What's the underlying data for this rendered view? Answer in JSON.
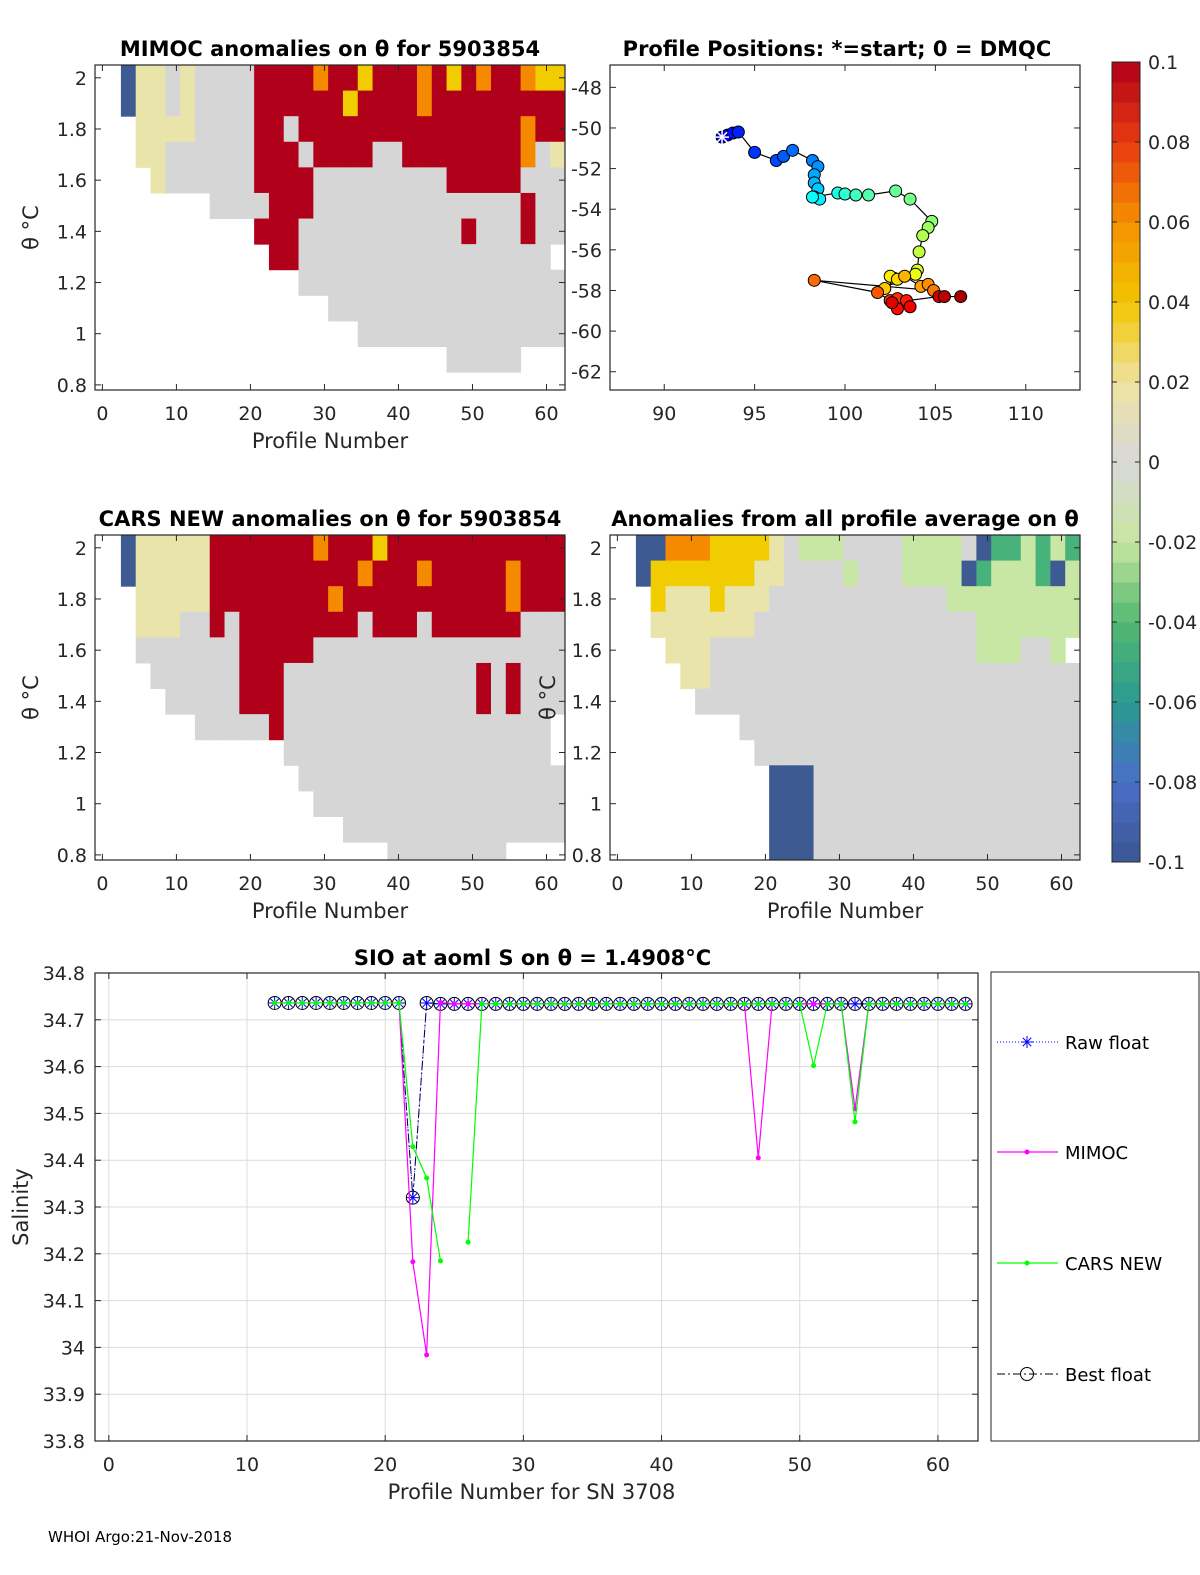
{
  "figure": {
    "footer": "WHOI Argo:21-Nov-2018"
  },
  "heat_palette": {
    "g": "#d6d6d6",
    "y": "#e8e4aa",
    "Y": "#f0cc00",
    "o": "#f58a00",
    "r": "#b0001a",
    "b": "#3e5a92",
    "l": "#c8e6a4",
    "G": "#47b27a"
  },
  "colorbar": {
    "range": [
      -0.1,
      0.1
    ],
    "stops": [
      "#3b5591",
      "#4a6fc8",
      "#2a9a90",
      "#52b870",
      "#c8e6a0",
      "#d8d8d8",
      "#eee3a0",
      "#f2c500",
      "#f59000",
      "#e83a10",
      "#b0001a"
    ],
    "ticks": [
      0.1,
      0.08,
      0.06,
      0.04,
      0.02,
      0,
      -0.02,
      -0.04,
      -0.06,
      -0.08,
      -0.1
    ],
    "tick_labels": [
      "0.1",
      "0.08",
      "0.06",
      "0.04",
      "0.02",
      "0",
      "-0.02",
      "-0.04",
      "-0.06",
      "-0.08",
      "-0.1"
    ]
  },
  "chart_data": [
    {
      "type": "heatmap",
      "title": "MIMOC anomalies on θ  for 5903854",
      "xlabel": "Profile Number",
      "ylabel": "θ °C",
      "xlim": [
        -1,
        62.5
      ],
      "ylim": [
        0.78,
        2.05
      ],
      "xticks": [
        0,
        10,
        20,
        30,
        40,
        50,
        60
      ],
      "xtick_labels": [
        "0",
        "10",
        "20",
        "30",
        "40",
        "50",
        "60"
      ],
      "yticks": [
        0.8,
        1,
        1.2,
        1.4,
        1.6,
        1.8,
        2
      ],
      "ytick_labels": [
        "0.8",
        "1",
        "1.2",
        "1.4",
        "1.6",
        "1.8",
        "2"
      ],
      "theta_rows": [
        2.0,
        1.9,
        1.8,
        1.7,
        1.6,
        1.5,
        1.4,
        1.3,
        1.2,
        1.1,
        1.0,
        0.9,
        0.8
      ],
      "profile_group_size": 2,
      "grid": [
        ".byygyggggrrrrorrYrrrorYrorroYY",
        ".byygyggggrrrrrrYrrrrorrrrrrrrr",
        "..yyyyggggrrgrrrrrrrrrrrrrrrorr",
        "..yyggggggrrrgrrrrggrrrrrrrrogy",
        "...yggggggrrrrgggggggggrrrrrggg",
        ".......ggggrrrggggggggggggggrggg",
        "..........rrrgggggggggggrgggrgg",
        "...........rrggggggggggggggggg",
        ".............gggggggggggggggggg",
        "...............gggggggggggggggg",
        ".................gggggggggggggg",
        ".......................ggggg...",
        "..............................."
      ]
    },
    {
      "type": "scatter",
      "title": "Profile Positions: *=start; 0 = DMQC",
      "xlim": [
        87,
        113
      ],
      "ylim": [
        -62.9,
        -46.9
      ],
      "xticks": [
        90,
        95,
        100,
        105,
        110
      ],
      "xtick_labels": [
        "90",
        "95",
        "100",
        "105",
        "110"
      ],
      "yticks": [
        -48,
        -50,
        -52,
        -54,
        -56,
        -58,
        -60,
        -62
      ],
      "ytick_labels": [
        "-48",
        "-50",
        "-52",
        "-54",
        "-56",
        "-58",
        "-60",
        "-62"
      ],
      "points": [
        [
          93.2,
          -50.45
        ],
        [
          93.5,
          -50.35
        ],
        [
          93.8,
          -50.25
        ],
        [
          94.1,
          -50.2
        ],
        [
          95.0,
          -51.2
        ],
        [
          96.2,
          -51.6
        ],
        [
          96.6,
          -51.4
        ],
        [
          97.1,
          -51.1
        ],
        [
          98.2,
          -51.6
        ],
        [
          98.5,
          -51.9
        ],
        [
          98.3,
          -52.3
        ],
        [
          98.3,
          -52.7
        ],
        [
          98.5,
          -53.0
        ],
        [
          98.3,
          -53.4
        ],
        [
          98.6,
          -53.5
        ],
        [
          98.2,
          -53.4
        ],
        [
          99.6,
          -53.2
        ],
        [
          100.0,
          -53.25
        ],
        [
          100.6,
          -53.3
        ],
        [
          101.3,
          -53.3
        ],
        [
          102.8,
          -53.1
        ],
        [
          103.6,
          -53.5
        ],
        [
          104.8,
          -54.6
        ],
        [
          104.6,
          -54.9
        ],
        [
          104.3,
          -55.3
        ],
        [
          104.1,
          -56.1
        ],
        [
          104.0,
          -57.0
        ],
        [
          103.9,
          -57.2
        ],
        [
          102.7,
          -57.4
        ],
        [
          102.5,
          -57.3
        ],
        [
          102.9,
          -57.45
        ],
        [
          102.2,
          -57.9
        ],
        [
          103.3,
          -57.3
        ],
        [
          104.2,
          -57.8
        ],
        [
          104.6,
          -57.7
        ],
        [
          104.9,
          -58.0
        ],
        [
          98.3,
          -57.5
        ],
        [
          101.8,
          -58.1
        ],
        [
          102.5,
          -58.5
        ],
        [
          102.9,
          -58.4
        ],
        [
          103.4,
          -58.5
        ],
        [
          102.9,
          -58.9
        ],
        [
          103.6,
          -58.8
        ],
        [
          102.6,
          -58.6
        ],
        [
          105.2,
          -58.3
        ],
        [
          105.5,
          -58.3
        ],
        [
          106.4,
          -58.3
        ]
      ]
    },
    {
      "type": "heatmap",
      "title": "CARS NEW anomalies on θ for 5903854",
      "xlabel": "Profile Number",
      "ylabel": "θ °C",
      "xlim": [
        -1,
        62.5
      ],
      "ylim": [
        0.78,
        2.05
      ],
      "xticks": [
        0,
        10,
        20,
        30,
        40,
        50,
        60
      ],
      "xtick_labels": [
        "0",
        "10",
        "20",
        "30",
        "40",
        "50",
        "60"
      ],
      "yticks": [
        0.8,
        1,
        1.2,
        1.4,
        1.6,
        1.8,
        2
      ],
      "ytick_labels": [
        "0.8",
        "1",
        "1.2",
        "1.4",
        "1.6",
        "1.8",
        "2"
      ],
      "theta_rows": [
        2.0,
        1.9,
        1.8,
        1.7,
        1.6,
        1.5,
        1.4,
        1.3,
        1.2,
        1.1,
        1.0,
        0.9,
        0.8
      ],
      "profile_group_size": 2,
      "grid": [
        ".byyyyyrrrrrrrorrrYrrrrrrrrrrrr",
        ".byyyyyrrrrrrrrrrorrrorrrrrorrr",
        "..yyyyyrrrrrrrrorrrrrrrrrrrorrr",
        "..yyyggrgrrrrrrrrgrrrgrrrrrrggg",
        "..gggggggrrrrrgggggggggggggggggg",
        "...ggggggrrrgggggggggggggrgrggg",
        "....gggggrrrgggggggggggggrgrggg",
        "......gggggrgggggggggggggggggg",
        "............gggggggggggggggggg",
        ".............gggggggggggggggggg",
        "..............ggggggggggggggggg",
        "................ggggggggggggggg",
        "...................gggggggg...."
      ]
    },
    {
      "type": "heatmap",
      "title": "Anomalies from all profile average on θ",
      "xlabel": "Profile Number",
      "ylabel": "θ °C",
      "xlim": [
        -1,
        62.5
      ],
      "ylim": [
        0.78,
        2.05
      ],
      "xticks": [
        0,
        10,
        20,
        30,
        40,
        50,
        60
      ],
      "xtick_labels": [
        "0",
        "10",
        "20",
        "30",
        "40",
        "50",
        "60"
      ],
      "yticks": [
        0.8,
        1,
        1.2,
        1.4,
        1.6,
        1.8,
        2
      ],
      "ytick_labels": [
        "0.8",
        "1",
        "1.2",
        "1.4",
        "1.6",
        "1.8",
        "2"
      ],
      "theta_rows": [
        2.0,
        1.9,
        1.8,
        1.7,
        1.6,
        1.5,
        1.4,
        1.3,
        1.2,
        1.1,
        1.0,
        0.9,
        0.8
      ],
      "profile_group_size": 2,
      "grid": [
        ".bboooYYYYyglllggggllllgbGGlGlG",
        ".bYYYYYYYyygggglgggllllbGlllGbl",
        "..YyyyYyyygggggggggggglllllllll",
        "..yyyyyyyggggggggggggggglllllll",
        "...yyygggggggggggggggggglllggl",
        "....yygggggggggggggggggggggggggg",
        ".....gggggggggggggggggggggggggg",
        "........ggggggggggggggggggggggg",
        ".........gggggggggggggggggggggg",
        "..........bbbgggggggggggggggggg",
        "..........bbbgggggggggggggggggg",
        "..........bbbgggggggggggggggggg",
        "..........bbbgggggggggggggggggg"
      ]
    },
    {
      "type": "line",
      "title": "SIO at aoml S on θ = 1.4908°C",
      "xlabel": "Profile Number for SN 3708",
      "ylabel": "Salinity",
      "xlim": [
        -1,
        62.9
      ],
      "ylim": [
        33.8,
        34.8
      ],
      "grid": true,
      "legend_position": "outside-right",
      "xticks": [
        0,
        10,
        20,
        30,
        40,
        50,
        60
      ],
      "xtick_labels": [
        "0",
        "10",
        "20",
        "30",
        "40",
        "50",
        "60"
      ],
      "yticks": [
        34.8,
        34.7,
        34.6,
        34.5,
        34.4,
        34.3,
        34.2,
        34.1,
        34,
        33.9,
        33.8
      ],
      "ytick_labels": [
        "34.8",
        "34.7",
        "34.6",
        "34.5",
        "34.4",
        "34.3",
        "34.2",
        "34.1",
        "34",
        "33.9",
        "33.8"
      ],
      "x": [
        12,
        13,
        14,
        15,
        16,
        17,
        18,
        19,
        20,
        21,
        22,
        23,
        24,
        25,
        26,
        27,
        28,
        29,
        30,
        31,
        32,
        33,
        34,
        35,
        36,
        37,
        38,
        39,
        40,
        41,
        42,
        43,
        44,
        45,
        46,
        47,
        48,
        49,
        50,
        51,
        52,
        53,
        54,
        55,
        56,
        57,
        58,
        59,
        60,
        61,
        62
      ],
      "series": [
        {
          "name": "Best float",
          "color": "#000000",
          "values": [
            34.736,
            34.736,
            34.736,
            34.736,
            34.736,
            34.736,
            34.736,
            34.736,
            34.736,
            34.736,
            34.32,
            34.736,
            34.734,
            34.734,
            34.734,
            34.734,
            34.734,
            34.734,
            34.734,
            34.734,
            34.734,
            34.734,
            34.734,
            34.734,
            34.734,
            34.734,
            34.734,
            34.734,
            34.734,
            34.734,
            34.734,
            34.734,
            34.734,
            34.734,
            34.734,
            34.734,
            34.734,
            34.734,
            34.734,
            34.734,
            34.734,
            34.734,
            34.734,
            34.734,
            34.734,
            34.734,
            34.734,
            34.734,
            34.734,
            34.734,
            34.734
          ]
        },
        {
          "name": "Raw float",
          "color": "#0000ff",
          "values": [
            34.736,
            34.736,
            34.736,
            34.736,
            34.736,
            34.736,
            34.736,
            34.736,
            34.736,
            34.736,
            34.32,
            34.736,
            34.734,
            34.734,
            34.734,
            34.734,
            34.734,
            34.734,
            34.734,
            34.734,
            34.734,
            34.734,
            34.734,
            34.734,
            34.734,
            34.734,
            34.734,
            34.734,
            34.734,
            34.734,
            34.734,
            34.734,
            34.734,
            34.734,
            34.734,
            34.734,
            34.734,
            34.734,
            34.734,
            34.734,
            34.734,
            34.734,
            34.734,
            34.734,
            34.734,
            34.734,
            34.734,
            34.734,
            34.734,
            34.734,
            34.734
          ]
        },
        {
          "name": "MIMOC",
          "color": "#ff00ff",
          "values": [
            34.736,
            34.736,
            34.736,
            34.736,
            34.736,
            34.736,
            34.736,
            34.736,
            34.736,
            34.736,
            34.183,
            33.984,
            34.737,
            34.734,
            34.734,
            34.734,
            34.734,
            34.734,
            34.734,
            34.734,
            34.734,
            34.734,
            34.734,
            34.734,
            34.734,
            34.734,
            34.734,
            34.734,
            34.734,
            34.734,
            34.734,
            34.734,
            34.734,
            34.734,
            34.734,
            34.405,
            34.734,
            34.734,
            34.734,
            34.734,
            34.734,
            34.734,
            34.51,
            34.734,
            34.734,
            34.734,
            34.734,
            34.734,
            34.734,
            34.734,
            34.734
          ]
        },
        {
          "name": "CARS NEW",
          "color": "#00ff00",
          "values": [
            34.736,
            34.736,
            34.736,
            34.736,
            34.736,
            34.736,
            34.736,
            34.736,
            34.736,
            34.736,
            34.429,
            34.362,
            34.185,
            null,
            34.225,
            34.734,
            34.734,
            34.734,
            34.734,
            34.734,
            34.734,
            34.734,
            34.734,
            34.734,
            34.734,
            34.734,
            34.734,
            34.734,
            34.734,
            34.734,
            34.734,
            34.734,
            34.734,
            34.734,
            34.734,
            34.734,
            34.734,
            34.734,
            34.734,
            34.602,
            34.734,
            34.734,
            34.482,
            34.734,
            34.734,
            34.734,
            34.734,
            34.734,
            34.734,
            34.734,
            34.734
          ]
        }
      ],
      "legend": [
        "Raw float",
        "MIMOC",
        "CARS NEW",
        "Best float"
      ]
    }
  ]
}
